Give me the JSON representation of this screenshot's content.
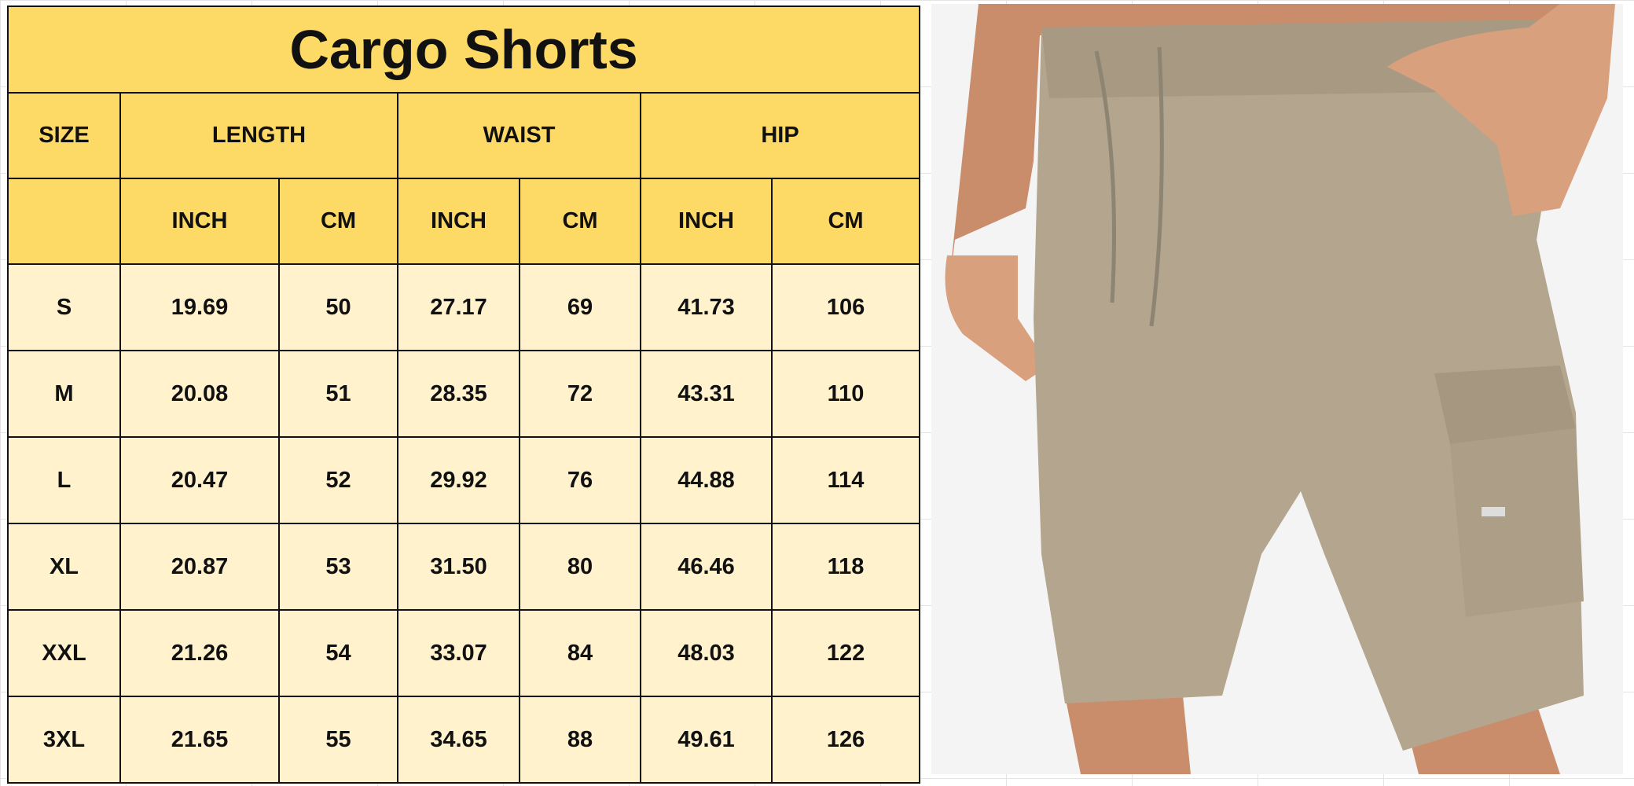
{
  "title": "Cargo Shorts",
  "headers": {
    "size": "SIZE",
    "length": "LENGTH",
    "waist": "WAIST",
    "hip": "HIP"
  },
  "units": [
    "INCH",
    "CM",
    "INCH",
    "CM",
    "INCH",
    "CM"
  ],
  "rows": [
    [
      "S",
      "19.69",
      "50",
      "27.17",
      "69",
      "41.73",
      "106"
    ],
    [
      "M",
      "20.08",
      "51",
      "28.35",
      "72",
      "43.31",
      "110"
    ],
    [
      "L",
      "20.47",
      "52",
      "29.92",
      "76",
      "44.88",
      "114"
    ],
    [
      "XL",
      "20.87",
      "53",
      "31.50",
      "80",
      "46.46",
      "118"
    ],
    [
      "XXL",
      "21.26",
      "54",
      "33.07",
      "84",
      "48.03",
      "122"
    ],
    [
      "3XL",
      "21.65",
      "55",
      "34.65",
      "88",
      "49.61",
      "126"
    ]
  ],
  "colors": {
    "header": "#fdd966",
    "body": "#fff2cc",
    "shorts": "#b3a58e",
    "skin": "#d9a07e"
  }
}
